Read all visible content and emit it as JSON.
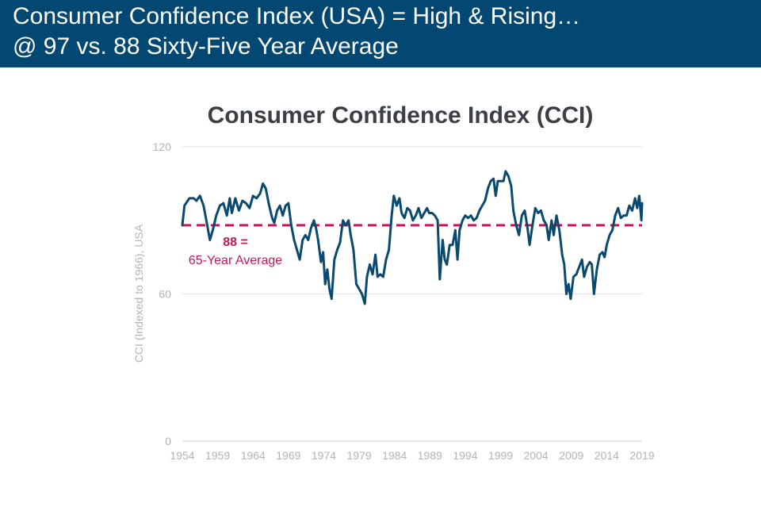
{
  "banner": {
    "line1": "Consumer Confidence Index (USA) = High & Rising…",
    "line2": "@ 97 vs. 88 Sixty-Five Year Average"
  },
  "chart_data": {
    "type": "line",
    "title": "Consumer Confidence Index (CCI)",
    "xlabel": "",
    "ylabel": "CCI (Indexed to 1966), USA",
    "xlim": [
      1954,
      2019
    ],
    "ylim": [
      0,
      120
    ],
    "x_ticks": [
      1954,
      1959,
      1964,
      1969,
      1974,
      1979,
      1984,
      1989,
      1994,
      1999,
      2004,
      2009,
      2014,
      2019
    ],
    "y_ticks": [
      0,
      60,
      120
    ],
    "grid": true,
    "reference_line": {
      "value": 88,
      "label_line1": "88 =",
      "label_line2": "65-Year Average",
      "color": "#c2185b"
    },
    "series": [
      {
        "name": "CCI",
        "color": "#0b4a6f",
        "points": [
          [
            1954.0,
            88
          ],
          [
            1954.3,
            96
          ],
          [
            1955.0,
            99
          ],
          [
            1955.6,
            99
          ],
          [
            1956.0,
            98
          ],
          [
            1956.5,
            100
          ],
          [
            1957.0,
            96
          ],
          [
            1957.4,
            90
          ],
          [
            1957.9,
            82
          ],
          [
            1958.3,
            86
          ],
          [
            1958.8,
            92
          ],
          [
            1959.3,
            96
          ],
          [
            1959.8,
            97
          ],
          [
            1960.3,
            92
          ],
          [
            1960.7,
            99
          ],
          [
            1961.0,
            93
          ],
          [
            1961.5,
            99
          ],
          [
            1962.0,
            94
          ],
          [
            1962.5,
            98
          ],
          [
            1963.0,
            97
          ],
          [
            1963.5,
            95
          ],
          [
            1964.0,
            100
          ],
          [
            1964.5,
            99
          ],
          [
            1965.0,
            101
          ],
          [
            1965.4,
            105
          ],
          [
            1965.8,
            103
          ],
          [
            1966.2,
            97
          ],
          [
            1966.7,
            91
          ],
          [
            1967.0,
            89
          ],
          [
            1967.4,
            94
          ],
          [
            1967.8,
            96
          ],
          [
            1968.2,
            92
          ],
          [
            1968.6,
            96
          ],
          [
            1969.0,
            97
          ],
          [
            1969.4,
            88
          ],
          [
            1969.8,
            82
          ],
          [
            1970.2,
            78
          ],
          [
            1970.6,
            74
          ],
          [
            1971.0,
            82
          ],
          [
            1971.4,
            84
          ],
          [
            1971.8,
            82
          ],
          [
            1972.2,
            87
          ],
          [
            1972.6,
            90
          ],
          [
            1972.9,
            87
          ],
          [
            1973.2,
            82
          ],
          [
            1973.6,
            73
          ],
          [
            1973.9,
            77
          ],
          [
            1974.2,
            64
          ],
          [
            1974.5,
            70
          ],
          [
            1974.8,
            62
          ],
          [
            1975.1,
            58
          ],
          [
            1975.5,
            74
          ],
          [
            1975.9,
            78
          ],
          [
            1976.3,
            81
          ],
          [
            1976.7,
            90
          ],
          [
            1977.1,
            88
          ],
          [
            1977.5,
            90
          ],
          [
            1977.8,
            84
          ],
          [
            1978.2,
            78
          ],
          [
            1978.6,
            64
          ],
          [
            1979.0,
            62
          ],
          [
            1979.4,
            60
          ],
          [
            1979.8,
            56
          ],
          [
            1980.1,
            67
          ],
          [
            1980.5,
            72
          ],
          [
            1980.9,
            68
          ],
          [
            1981.3,
            76
          ],
          [
            1981.6,
            67
          ],
          [
            1982.0,
            68
          ],
          [
            1982.4,
            67
          ],
          [
            1982.8,
            74
          ],
          [
            1983.2,
            78
          ],
          [
            1983.6,
            92
          ],
          [
            1983.9,
            100
          ],
          [
            1984.3,
            96
          ],
          [
            1984.7,
            99
          ],
          [
            1985.0,
            93
          ],
          [
            1985.4,
            91
          ],
          [
            1985.8,
            95
          ],
          [
            1986.2,
            94
          ],
          [
            1986.6,
            90
          ],
          [
            1987.0,
            92
          ],
          [
            1987.4,
            95
          ],
          [
            1987.8,
            91
          ],
          [
            1988.2,
            93
          ],
          [
            1988.6,
            95
          ],
          [
            1988.9,
            93
          ],
          [
            1989.3,
            93
          ],
          [
            1989.7,
            92
          ],
          [
            1990.1,
            90
          ],
          [
            1990.4,
            66
          ],
          [
            1990.8,
            82
          ],
          [
            1991.1,
            74
          ],
          [
            1991.4,
            72
          ],
          [
            1991.8,
            80
          ],
          [
            1992.2,
            80
          ],
          [
            1992.6,
            86
          ],
          [
            1992.9,
            74
          ],
          [
            1993.2,
            86
          ],
          [
            1993.6,
            90
          ],
          [
            1994.0,
            92
          ],
          [
            1994.4,
            91
          ],
          [
            1994.8,
            92
          ],
          [
            1995.2,
            90
          ],
          [
            1995.6,
            91
          ],
          [
            1996.0,
            94
          ],
          [
            1996.4,
            96
          ],
          [
            1996.8,
            98
          ],
          [
            1997.2,
            103
          ],
          [
            1997.6,
            106
          ],
          [
            1998.0,
            107
          ],
          [
            1998.3,
            100
          ],
          [
            1998.6,
            106
          ],
          [
            1999.0,
            106
          ],
          [
            1999.4,
            106
          ],
          [
            1999.7,
            110
          ],
          [
            2000.1,
            108
          ],
          [
            2000.5,
            104
          ],
          [
            2000.8,
            94
          ],
          [
            2001.2,
            88
          ],
          [
            2001.6,
            84
          ],
          [
            2002.0,
            92
          ],
          [
            2002.4,
            94
          ],
          [
            2002.8,
            87
          ],
          [
            2003.1,
            80
          ],
          [
            2003.5,
            88
          ],
          [
            2003.9,
            95
          ],
          [
            2004.3,
            93
          ],
          [
            2004.7,
            94
          ],
          [
            2005.1,
            90
          ],
          [
            2005.5,
            88
          ],
          [
            2005.8,
            82
          ],
          [
            2006.2,
            90
          ],
          [
            2006.5,
            84
          ],
          [
            2006.9,
            92
          ],
          [
            2007.3,
            86
          ],
          [
            2007.7,
            76
          ],
          [
            2008.0,
            72
          ],
          [
            2008.3,
            60
          ],
          [
            2008.6,
            64
          ],
          [
            2008.9,
            58
          ],
          [
            2009.3,
            67
          ],
          [
            2009.7,
            68
          ],
          [
            2010.1,
            71
          ],
          [
            2010.5,
            74
          ],
          [
            2010.8,
            67
          ],
          [
            2011.2,
            71
          ],
          [
            2011.6,
            73
          ],
          [
            2011.9,
            72
          ],
          [
            2012.2,
            60
          ],
          [
            2012.6,
            70
          ],
          [
            2013.0,
            76
          ],
          [
            2013.4,
            77
          ],
          [
            2013.7,
            75
          ],
          [
            2014.0,
            80
          ],
          [
            2014.4,
            84
          ],
          [
            2014.8,
            86
          ],
          [
            2015.2,
            92
          ],
          [
            2015.6,
            95
          ],
          [
            2016.0,
            91
          ],
          [
            2016.4,
            92
          ],
          [
            2016.8,
            92
          ],
          [
            2017.2,
            96
          ],
          [
            2017.6,
            94
          ],
          [
            2018.0,
            99
          ],
          [
            2018.3,
            95
          ],
          [
            2018.6,
            100
          ],
          [
            2018.9,
            90
          ],
          [
            2019.0,
            97
          ]
        ]
      }
    ]
  }
}
